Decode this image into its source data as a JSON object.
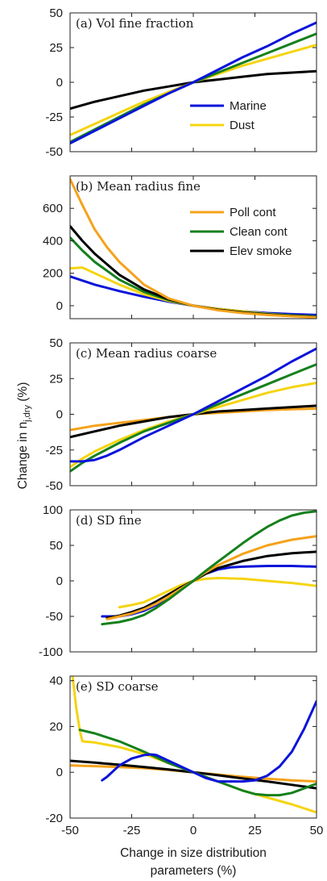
{
  "figure": {
    "ylabel_text": "Change in n",
    "ylabel_subscript": "j,dry",
    "ylabel_suffix": " (%)",
    "xlabel_line1": "Change in size distribution",
    "xlabel_line2": "parameters (%)"
  },
  "colors": {
    "Marine": "#0a14d9",
    "Dust": "#f5d411",
    "Poll cont": "#f5a21b",
    "Clean cont": "#15801d",
    "Elev smoke": "#000000"
  },
  "chart_data": [
    {
      "type": "line",
      "title": "(a) Vol fine fraction",
      "xlim": [
        -50,
        50
      ],
      "ylim": [
        -50,
        50
      ],
      "yticks": [
        -50,
        -25,
        0,
        25,
        50
      ],
      "ytick_labels": [
        "-50",
        "-25",
        "0",
        "25",
        "50"
      ],
      "xticks": [
        -50,
        -25,
        0,
        25,
        50
      ],
      "xtick_labels": [],
      "grid": false,
      "legend_position": "bottom-right",
      "legend": [
        "Marine",
        "Dust"
      ],
      "series": [
        {
          "name": "Elev smoke",
          "x": [
            -50,
            -40,
            -30,
            -20,
            -10,
            0,
            10,
            20,
            30,
            40,
            50
          ],
          "y": [
            -19,
            -14,
            -10,
            -6,
            -3,
            0,
            2,
            4,
            6,
            7,
            8
          ]
        },
        {
          "name": "Dust",
          "x": [
            -50,
            -40,
            -30,
            -20,
            -10,
            0,
            10,
            20,
            30,
            40,
            50
          ],
          "y": [
            -38,
            -30,
            -22,
            -14,
            -7,
            0,
            6,
            12,
            17,
            22,
            27
          ]
        },
        {
          "name": "Clean cont",
          "x": [
            -50,
            -40,
            -30,
            -20,
            -10,
            0,
            10,
            20,
            30,
            40,
            50
          ],
          "y": [
            -43,
            -34,
            -25,
            -16,
            -8,
            0,
            7,
            14,
            21,
            28,
            35
          ]
        },
        {
          "name": "Marine",
          "x": [
            -50,
            -40,
            -30,
            -20,
            -10,
            0,
            10,
            20,
            30,
            40,
            50
          ],
          "y": [
            -44,
            -35,
            -26,
            -17,
            -8,
            0,
            9,
            18,
            26,
            35,
            43
          ]
        }
      ]
    },
    {
      "type": "line",
      "title": "(b) Mean radius fine",
      "xlim": [
        -50,
        50
      ],
      "ylim": [
        -80,
        800
      ],
      "yticks": [
        0,
        200,
        400,
        600
      ],
      "ytick_labels": [
        "0",
        "200",
        "400",
        "600"
      ],
      "xticks": [
        -50,
        -25,
        0,
        25,
        50
      ],
      "xtick_labels": [],
      "grid": false,
      "legend_position": "top-right",
      "legend": [
        "Poll cont",
        "Clean cont",
        "Elev smoke"
      ],
      "series": [
        {
          "name": "Marine",
          "x": [
            -50,
            -40,
            -30,
            -20,
            -10,
            0,
            10,
            20,
            30,
            40,
            50
          ],
          "y": [
            180,
            130,
            90,
            55,
            25,
            0,
            -20,
            -35,
            -45,
            -52,
            -57
          ]
        },
        {
          "name": "Dust",
          "x": [
            -50,
            -45,
            -40,
            -30,
            -20,
            -10,
            0,
            10,
            20,
            30,
            40,
            50
          ],
          "y": [
            230,
            235,
            200,
            130,
            70,
            30,
            0,
            -20,
            -35,
            -50,
            -60,
            -68
          ]
        },
        {
          "name": "Clean cont",
          "x": [
            -50,
            -45,
            -40,
            -30,
            -20,
            -10,
            0,
            10,
            20,
            30,
            40,
            50
          ],
          "y": [
            420,
            340,
            270,
            160,
            85,
            35,
            0,
            -25,
            -40,
            -52,
            -60,
            -66
          ]
        },
        {
          "name": "Elev smoke",
          "x": [
            -50,
            -45,
            -40,
            -30,
            -20,
            -10,
            0,
            10,
            20,
            30,
            40,
            50
          ],
          "y": [
            490,
            400,
            320,
            190,
            100,
            40,
            0,
            -25,
            -42,
            -55,
            -63,
            -70
          ]
        },
        {
          "name": "Poll cont",
          "x": [
            -50,
            -45,
            -40,
            -35,
            -30,
            -20,
            -10,
            0,
            10,
            20,
            30,
            40,
            50
          ],
          "y": [
            780,
            620,
            470,
            360,
            270,
            130,
            45,
            0,
            -28,
            -45,
            -57,
            -65,
            -72
          ]
        }
      ]
    },
    {
      "type": "line",
      "title": "(c) Mean radius coarse",
      "xlim": [
        -50,
        50
      ],
      "ylim": [
        -50,
        50
      ],
      "yticks": [
        -50,
        -25,
        0,
        25,
        50
      ],
      "ytick_labels": [
        "-50",
        "-25",
        "0",
        "25",
        "50"
      ],
      "xticks": [
        -50,
        -25,
        0,
        25,
        50
      ],
      "xtick_labels": [],
      "grid": false,
      "series": [
        {
          "name": "Poll cont",
          "x": [
            -50,
            -40,
            -30,
            -20,
            -10,
            0,
            10,
            20,
            30,
            40,
            50
          ],
          "y": [
            -11,
            -8,
            -6,
            -4,
            -2,
            0,
            1,
            2,
            3,
            3.5,
            4
          ]
        },
        {
          "name": "Elev smoke",
          "x": [
            -50,
            -40,
            -30,
            -20,
            -10,
            0,
            10,
            20,
            30,
            40,
            50
          ],
          "y": [
            -16,
            -12,
            -8,
            -5,
            -2,
            0,
            2,
            3,
            4,
            5,
            6
          ]
        },
        {
          "name": "Dust",
          "x": [
            -50,
            -45,
            -40,
            -30,
            -20,
            -10,
            0,
            10,
            20,
            30,
            40,
            50
          ],
          "y": [
            -37,
            -31,
            -26,
            -18,
            -11,
            -5,
            0,
            5,
            10,
            15,
            19,
            22
          ]
        },
        {
          "name": "Clean cont",
          "x": [
            -50,
            -45,
            -40,
            -30,
            -20,
            -10,
            0,
            10,
            20,
            30,
            40,
            50
          ],
          "y": [
            -40,
            -34,
            -29,
            -20,
            -12,
            -6,
            0,
            7,
            14,
            21,
            28,
            35
          ]
        },
        {
          "name": "Marine",
          "x": [
            -50,
            -45,
            -40,
            -35,
            -30,
            -20,
            -10,
            0,
            10,
            20,
            30,
            40,
            50
          ],
          "y": [
            -33,
            -33,
            -32,
            -29,
            -25,
            -16,
            -8,
            0,
            9,
            18,
            27,
            37,
            46
          ]
        }
      ]
    },
    {
      "type": "line",
      "title": "(d) SD fine",
      "xlim": [
        -50,
        50
      ],
      "ylim": [
        -100,
        100
      ],
      "yticks": [
        -100,
        -50,
        0,
        50,
        100
      ],
      "ytick_labels": [
        "-100",
        "-50",
        "0",
        "50",
        "100"
      ],
      "xticks": [
        -50,
        -25,
        0,
        25,
        50
      ],
      "xtick_labels": [],
      "grid": false,
      "series": [
        {
          "name": "Dust",
          "x": [
            -30,
            -25,
            -20,
            -15,
            -10,
            -5,
            0,
            5,
            10,
            20,
            30,
            40,
            50
          ],
          "y": [
            -37,
            -34,
            -30,
            -22,
            -14,
            -6,
            0,
            3,
            4,
            3,
            0,
            -3,
            -7
          ]
        },
        {
          "name": "Marine",
          "x": [
            -37,
            -30,
            -25,
            -20,
            -15,
            -10,
            -5,
            0,
            5,
            10,
            15,
            20,
            30,
            40,
            50
          ],
          "y": [
            -50,
            -50,
            -47,
            -42,
            -34,
            -23,
            -12,
            0,
            10,
            16,
            19,
            20,
            21,
            21,
            20
          ]
        },
        {
          "name": "Elev smoke",
          "x": [
            -35,
            -30,
            -25,
            -20,
            -15,
            -10,
            -5,
            0,
            5,
            10,
            20,
            30,
            40,
            50
          ],
          "y": [
            -52,
            -49,
            -44,
            -38,
            -29,
            -19,
            -9,
            0,
            10,
            18,
            28,
            35,
            39,
            41
          ]
        },
        {
          "name": "Poll cont",
          "x": [
            -35,
            -30,
            -25,
            -20,
            -15,
            -10,
            -5,
            0,
            5,
            10,
            20,
            30,
            40,
            50
          ],
          "y": [
            -54,
            -50,
            -46,
            -40,
            -32,
            -22,
            -11,
            0,
            12,
            22,
            38,
            50,
            58,
            63
          ]
        },
        {
          "name": "Clean cont",
          "x": [
            -37,
            -30,
            -25,
            -20,
            -15,
            -10,
            -5,
            0,
            5,
            10,
            15,
            20,
            25,
            30,
            35,
            40,
            45,
            50
          ],
          "y": [
            -61,
            -58,
            -54,
            -48,
            -38,
            -26,
            -13,
            0,
            14,
            27,
            40,
            53,
            65,
            76,
            85,
            92,
            96,
            98
          ]
        }
      ]
    },
    {
      "type": "line",
      "title": "(e) SD coarse",
      "xlim": [
        -50,
        50
      ],
      "ylim": [
        -20,
        42
      ],
      "yticks": [
        -20,
        0,
        20,
        40
      ],
      "ytick_labels": [
        "-20",
        "0",
        "20",
        "40"
      ],
      "xticks": [
        -50,
        -25,
        0,
        25,
        50
      ],
      "xtick_labels": [
        "-50",
        "-25",
        "0",
        "25",
        "50"
      ],
      "grid": false,
      "series": [
        {
          "name": "Poll cont",
          "x": [
            -50,
            -40,
            -30,
            -20,
            -10,
            0,
            10,
            20,
            30,
            40,
            50
          ],
          "y": [
            3,
            2.7,
            2.3,
            1.8,
            1,
            0,
            -1,
            -2,
            -2.8,
            -3.5,
            -4
          ]
        },
        {
          "name": "Elev smoke",
          "x": [
            -50,
            -40,
            -30,
            -20,
            -10,
            0,
            10,
            20,
            30,
            40,
            50
          ],
          "y": [
            5,
            4.2,
            3.3,
            2.3,
            1.2,
            0,
            -1.3,
            -2.7,
            -4,
            -5.5,
            -7
          ]
        },
        {
          "name": "Dust",
          "x": [
            -49,
            -47.5,
            -46,
            -45,
            -40,
            -30,
            -20,
            -10,
            0,
            10,
            20,
            30,
            40,
            50
          ],
          "y": [
            42,
            28,
            18,
            13.5,
            13,
            11,
            8,
            4,
            0,
            -4,
            -8,
            -11,
            -14,
            -17.5
          ]
        },
        {
          "name": "Clean cont",
          "x": [
            -46,
            -40,
            -30,
            -20,
            -10,
            0,
            10,
            20,
            25,
            30,
            35,
            40,
            45,
            50
          ],
          "y": [
            18.5,
            17,
            13.5,
            9,
            4,
            0,
            -4,
            -8,
            -9.5,
            -10,
            -10,
            -9,
            -7,
            -5
          ]
        },
        {
          "name": "Marine",
          "x": [
            -37,
            -35,
            -30,
            -25,
            -20,
            -17,
            -15,
            -10,
            -5,
            0,
            5,
            10,
            15,
            20,
            25,
            30,
            35,
            40,
            45,
            50
          ],
          "y": [
            -3.5,
            -2,
            3,
            6,
            7.5,
            7.8,
            7.5,
            5,
            2.5,
            0,
            -2.5,
            -4,
            -4,
            -4,
            -3.5,
            -1.5,
            2.5,
            9,
            19,
            31
          ]
        }
      ]
    }
  ]
}
